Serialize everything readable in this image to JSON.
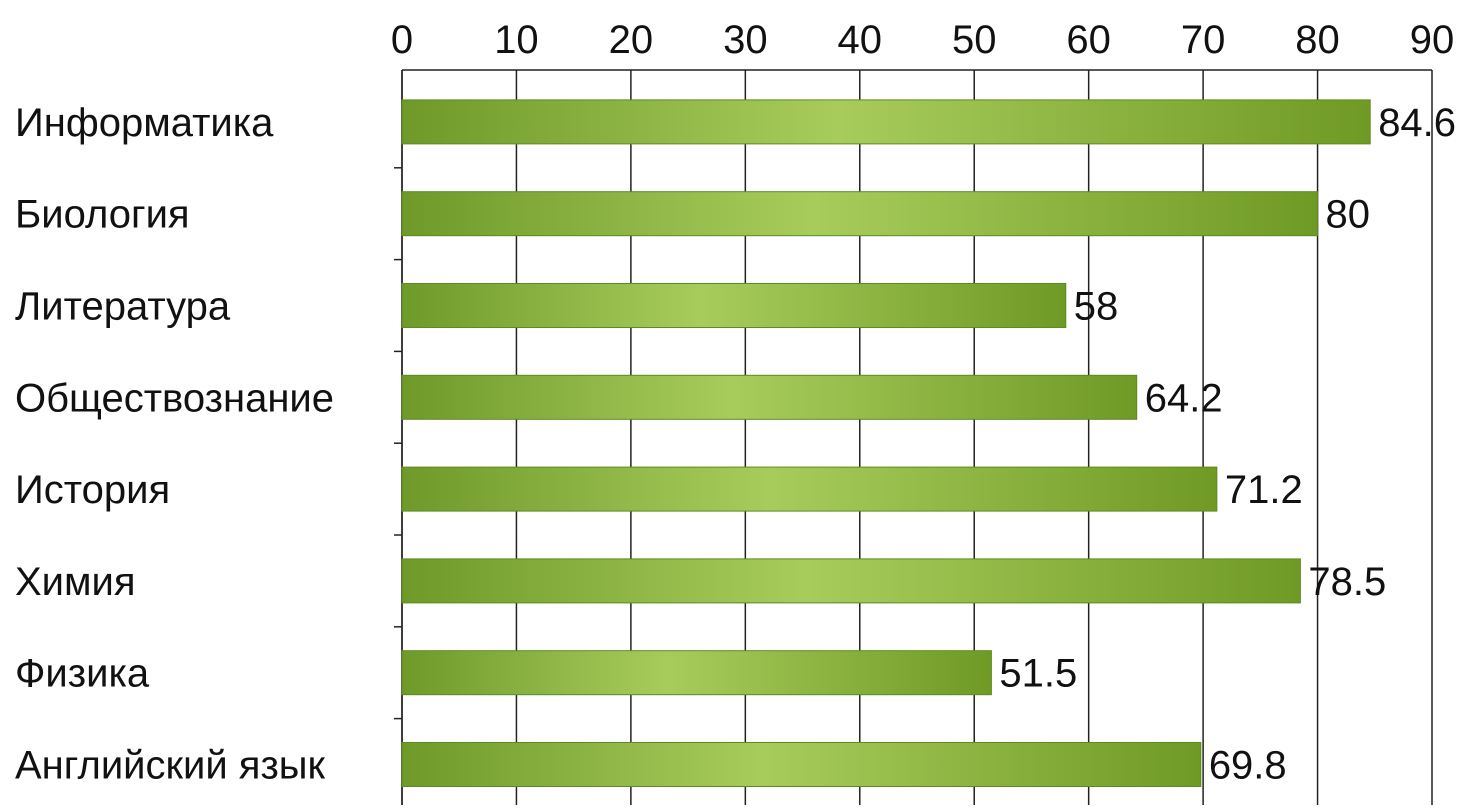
{
  "chart_data": {
    "type": "bar",
    "orientation": "horizontal",
    "categories": [
      "Информатика",
      "Биология",
      "Литература",
      "Обществознание",
      "История",
      "Химия",
      "Физика",
      "Английский язык"
    ],
    "values": [
      84.6,
      80,
      58,
      64.2,
      71.2,
      78.5,
      51.5,
      69.8
    ],
    "data_labels": [
      "84.6",
      "80",
      "58",
      "64.2",
      "71.2",
      "78.5",
      "51.5",
      "69.8"
    ],
    "x_ticks": [
      "0",
      "10",
      "20",
      "30",
      "40",
      "50",
      "60",
      "70",
      "80",
      "90"
    ],
    "xlim": [
      0,
      90
    ],
    "axis_position": "top",
    "grid": true,
    "title": "",
    "xlabel": "",
    "ylabel": "",
    "colors": {
      "bar_edge": "#6e9a2a",
      "bar_center": "#a8cc5c",
      "bar_dark": "#6f9a25",
      "grid": "#222222",
      "text": "#111111"
    }
  }
}
